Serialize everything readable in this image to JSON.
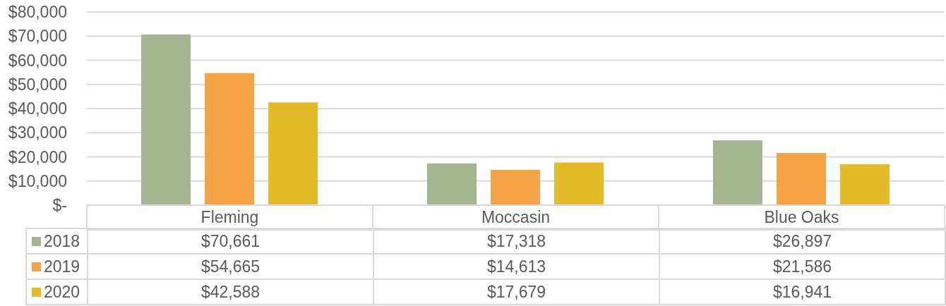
{
  "chart_data": {
    "type": "bar",
    "categories": [
      "Fleming",
      "Moccasin",
      "Blue Oaks"
    ],
    "series": [
      {
        "name": "2018",
        "color": "#a5b592",
        "values": [
          70661,
          17318,
          26897
        ],
        "value_labels": [
          "$70,661",
          "$17,318",
          "$26,897"
        ]
      },
      {
        "name": "2019",
        "color": "#f2a446",
        "values": [
          54665,
          14613,
          21586
        ],
        "value_labels": [
          "$54,665",
          "$14,613",
          "$21,586"
        ]
      },
      {
        "name": "2020",
        "color": "#e4bb2a",
        "values": [
          42588,
          17679,
          16941
        ],
        "value_labels": [
          "$42,588",
          "$17,679",
          "$16,941"
        ]
      }
    ],
    "ylim": [
      0,
      80000
    ],
    "yticks": [
      {
        "value": 0,
        "label": "$-"
      },
      {
        "value": 10000,
        "label": "$10,000"
      },
      {
        "value": 20000,
        "label": "$20,000"
      },
      {
        "value": 30000,
        "label": "$30,000"
      },
      {
        "value": 40000,
        "label": "$40,000"
      },
      {
        "value": 50000,
        "label": "$50,000"
      },
      {
        "value": 60000,
        "label": "$60,000"
      },
      {
        "value": 70000,
        "label": "$70,000"
      },
      {
        "value": 80000,
        "label": "$80,000"
      }
    ],
    "grid": "y",
    "legend": "bottom"
  }
}
